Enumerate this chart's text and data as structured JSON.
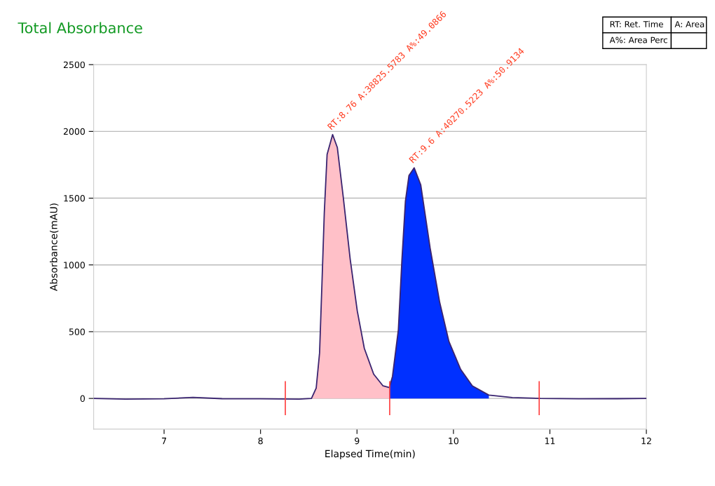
{
  "chart_data": {
    "type": "line",
    "title": "Total Absorbance",
    "xlabel": "Elapsed Time(min)",
    "ylabel": "Absorbance(mAU)",
    "xlim": [
      6.27,
      12
    ],
    "ylim": [
      -230,
      2500
    ],
    "xticks": [
      7,
      8,
      9,
      10,
      11,
      12
    ],
    "yticks": [
      0,
      500,
      1000,
      1500,
      2000,
      2500
    ],
    "grid": "y",
    "legend": false,
    "marker": "none",
    "line_style": "solid",
    "series": [
      {
        "color": "#3a2470",
        "x": [
          6.27,
          6.6,
          7.0,
          7.3,
          7.6,
          8.0,
          8.4,
          8.528,
          8.577,
          8.612,
          8.637,
          8.661,
          8.69,
          8.747,
          8.796,
          8.857,
          8.93,
          9.003,
          9.076,
          9.173,
          9.27,
          9.336,
          9.368,
          9.429,
          9.466,
          9.502,
          9.539,
          9.593,
          9.661,
          9.758,
          9.856,
          9.953,
          10.075,
          10.196,
          10.367,
          10.61,
          10.9,
          11.3,
          11.7,
          12
        ],
        "values": [
          0,
          -5,
          -3,
          8,
          -2,
          -3,
          -5,
          0,
          77,
          340,
          865,
          1390,
          1827,
          1976,
          1880,
          1512,
          1040,
          655,
          375,
          182,
          94,
          81,
          165,
          515,
          1040,
          1477,
          1670,
          1727,
          1600,
          1128,
          725,
          427,
          217,
          94,
          25,
          7,
          0,
          -3,
          -2,
          0
        ]
      },
      {
        "type": "area",
        "color": "#ffc0c8",
        "x": [
          8.528,
          8.577,
          8.612,
          8.637,
          8.661,
          8.69,
          8.747,
          8.796,
          8.857,
          8.93,
          9.003,
          9.076,
          9.173,
          9.27,
          9.336
        ],
        "values": [
          0,
          77,
          340,
          865,
          1390,
          1827,
          1976,
          1880,
          1512,
          1040,
          655,
          375,
          182,
          94,
          81
        ]
      },
      {
        "type": "area",
        "color": "#0030ff",
        "x": [
          9.336,
          9.368,
          9.429,
          9.466,
          9.502,
          9.539,
          9.593,
          9.661,
          9.758,
          9.856,
          9.953,
          10.075,
          10.196,
          10.367
        ],
        "values": [
          81,
          165,
          515,
          1040,
          1477,
          1670,
          1727,
          1600,
          1128,
          725,
          427,
          217,
          94,
          25
        ]
      }
    ],
    "ref_lines": [
      {
        "axis": "x",
        "value": 8.257,
        "color": "#ff4040"
      },
      {
        "axis": "x",
        "value": 9.339,
        "color": "#ff4040"
      },
      {
        "axis": "x",
        "value": 10.889,
        "color": "#ff4040"
      }
    ],
    "annotations": [
      {
        "text": "RT:8.76 A:38825.5783 A%:49.0866",
        "x": 8.747,
        "y": 1976
      },
      {
        "text": "RT:9.6 A:40270.5223 A%:50.9134",
        "x": 9.593,
        "y": 1727
      },
      "RT: Ret. Time",
      "A: Area",
      "A%: Area Perc"
    ]
  }
}
